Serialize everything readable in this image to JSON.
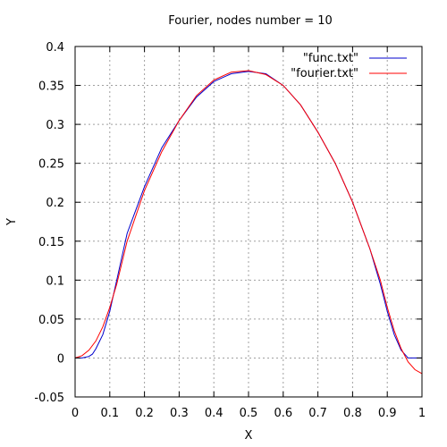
{
  "chart_data": {
    "type": "line",
    "title": "Fourier, nodes number = 10",
    "xlabel": "X",
    "ylabel": "Y",
    "xlim": [
      0,
      1
    ],
    "ylim": [
      -0.05,
      0.4
    ],
    "xticks": [
      0,
      0.1,
      0.2,
      0.3,
      0.4,
      0.5,
      0.6,
      0.7,
      0.8,
      0.9,
      1
    ],
    "xtick_labels": [
      "0",
      "0.1",
      "0.2",
      "0.3",
      "0.4",
      "0.5",
      "0.6",
      "0.7",
      "0.8",
      "0.9",
      "1"
    ],
    "yticks": [
      -0.05,
      0,
      0.05,
      0.1,
      0.15,
      0.2,
      0.25,
      0.3,
      0.35,
      0.4
    ],
    "ytick_labels": [
      "-0.05",
      "0",
      "0.05",
      "0.1",
      "0.15",
      "0.2",
      "0.25",
      "0.3",
      "0.35",
      "0.4"
    ],
    "grid": true,
    "legend_position": "top-right",
    "series": [
      {
        "name": "\"func.txt\"",
        "color": "#0000cc",
        "x": [
          0,
          0.02,
          0.04,
          0.05,
          0.06,
          0.08,
          0.1,
          0.12,
          0.15,
          0.2,
          0.25,
          0.3,
          0.35,
          0.4,
          0.45,
          0.5,
          0.55,
          0.6,
          0.65,
          0.7,
          0.75,
          0.8,
          0.85,
          0.88,
          0.9,
          0.92,
          0.94,
          0.96,
          1.0
        ],
        "y": [
          0,
          0,
          0.002,
          0.005,
          0.012,
          0.03,
          0.06,
          0.1,
          0.16,
          0.22,
          0.27,
          0.305,
          0.335,
          0.355,
          0.365,
          0.368,
          0.365,
          0.35,
          0.325,
          0.29,
          0.25,
          0.2,
          0.14,
          0.095,
          0.06,
          0.03,
          0.01,
          0,
          0
        ]
      },
      {
        "name": "\"fourier.txt\"",
        "color": "#ff0000",
        "x": [
          0,
          0.02,
          0.04,
          0.06,
          0.08,
          0.1,
          0.12,
          0.15,
          0.2,
          0.25,
          0.3,
          0.35,
          0.4,
          0.45,
          0.5,
          0.55,
          0.6,
          0.65,
          0.7,
          0.75,
          0.8,
          0.85,
          0.88,
          0.9,
          0.92,
          0.94,
          0.96,
          0.98,
          1.0
        ],
        "y": [
          0,
          0.003,
          0.01,
          0.022,
          0.04,
          0.065,
          0.095,
          0.15,
          0.215,
          0.265,
          0.305,
          0.337,
          0.357,
          0.367,
          0.369,
          0.364,
          0.35,
          0.325,
          0.29,
          0.25,
          0.2,
          0.14,
          0.1,
          0.065,
          0.035,
          0.012,
          -0.005,
          -0.015,
          -0.02
        ]
      }
    ]
  }
}
